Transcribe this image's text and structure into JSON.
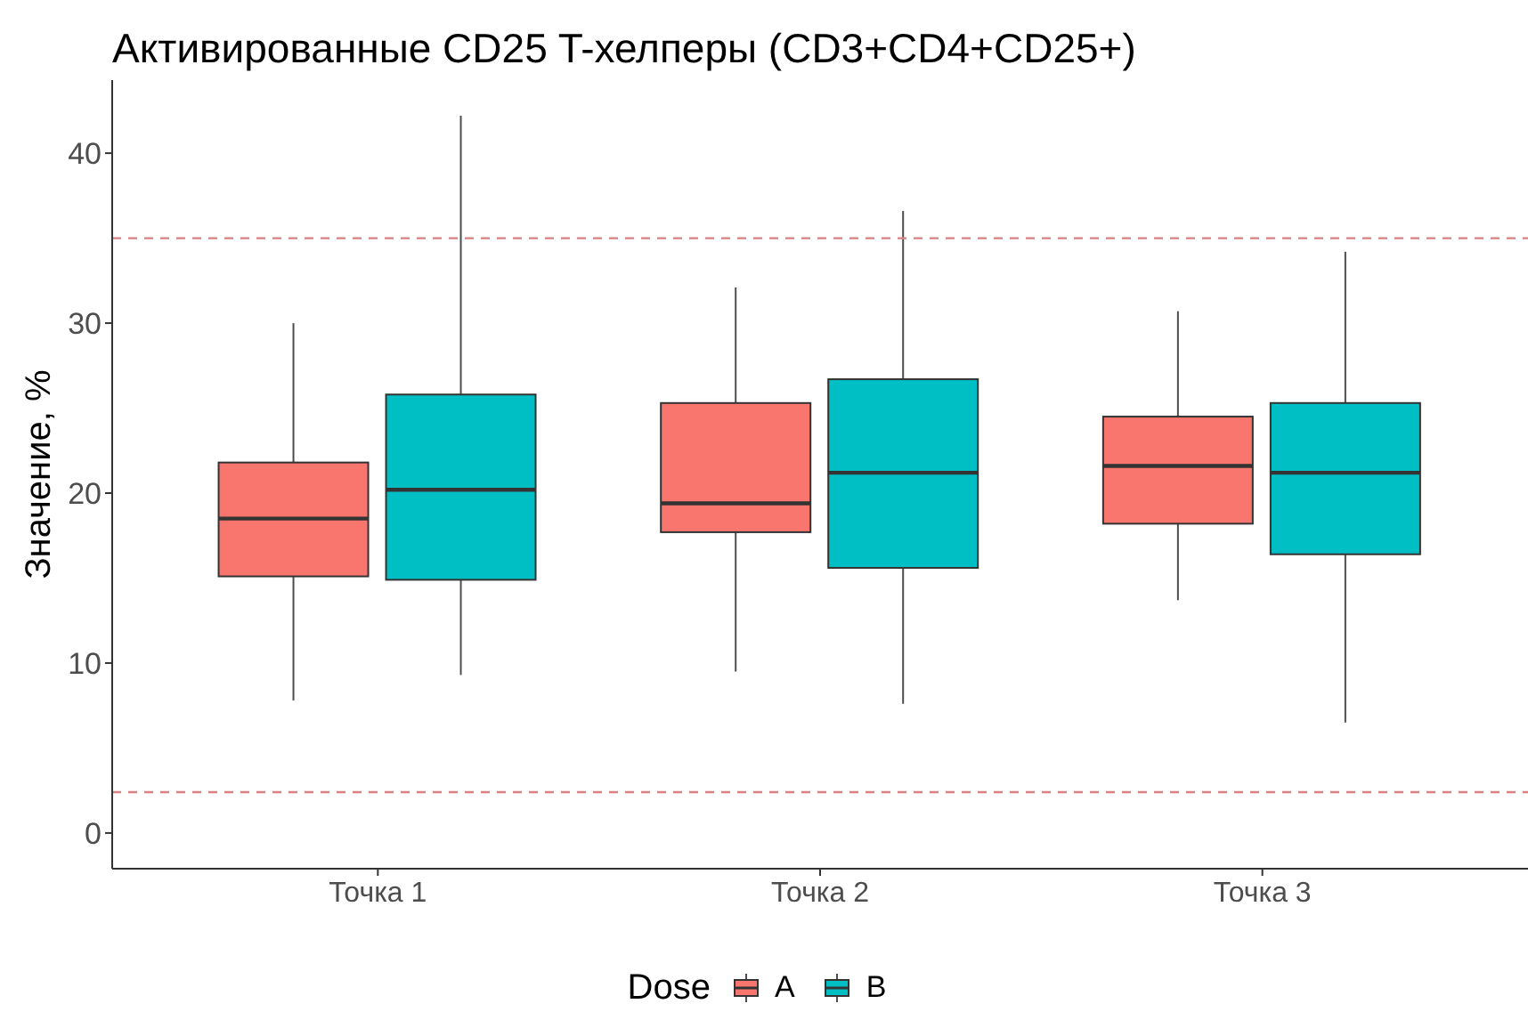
{
  "chart_data": {
    "type": "box",
    "title": "Активированные CD25 T-хелперы (CD3+CD4+CD25+)",
    "ylabel": "Значение, %",
    "legend_title": "Dose",
    "categories": [
      "Точка 1",
      "Точка 2",
      "Точка 3"
    ],
    "series": [
      {
        "name": "A",
        "color": "#f8766d",
        "boxes": [
          {
            "low": 7.8,
            "q1": 15.1,
            "median": 18.5,
            "q3": 21.8,
            "high": 30.0
          },
          {
            "low": 9.5,
            "q1": 17.7,
            "median": 19.4,
            "q3": 25.3,
            "high": 32.1
          },
          {
            "low": 13.7,
            "q1": 18.2,
            "median": 21.6,
            "q3": 24.5,
            "high": 30.7
          }
        ]
      },
      {
        "name": "B",
        "color": "#00bfc4",
        "boxes": [
          {
            "low": 9.3,
            "q1": 14.9,
            "median": 20.2,
            "q3": 25.8,
            "high": 42.2
          },
          {
            "low": 7.6,
            "q1": 15.6,
            "median": 21.2,
            "q3": 26.7,
            "high": 36.6
          },
          {
            "low": 6.5,
            "q1": 16.4,
            "median": 21.2,
            "q3": 25.3,
            "high": 34.2
          }
        ]
      }
    ],
    "ylim": [
      -2.1,
      44.3
    ],
    "yticks": [
      0,
      10,
      20,
      30,
      40
    ],
    "ref_lines": [
      {
        "axis": "y",
        "value": 35,
        "color": "#d98080",
        "line_style": "dashed"
      },
      {
        "axis": "y",
        "value": 2.4,
        "color": "#d98080",
        "line_style": "dashed"
      }
    ],
    "legend": "bottom"
  }
}
